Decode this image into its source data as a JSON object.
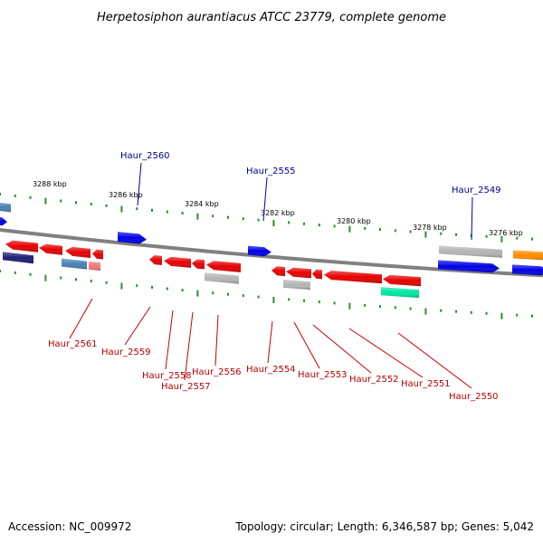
{
  "title": "Herpetosiphon aurantiacus ATCC 23779, complete genome",
  "footer": {
    "accession": "Accession: NC_009972",
    "summary": "Topology: circular; Length: 6,346,587 bp; Genes: 5,042"
  },
  "colors": {
    "backbone": "#808080",
    "tick": "#2e8b2e",
    "label_forward": "#00008b",
    "label_reverse": "#b40000",
    "leader_forward": "#0000a0",
    "leader_reverse": "#c80000",
    "gene_forward": "#0000e6",
    "gene_reverse": "#e60000",
    "gene_pseudo": "#b4b4b4",
    "gene_rna": "#00e6a0",
    "gene_pink": "#f07878",
    "gene_steel": "#4682b4",
    "gene_orange": "#ff8c00",
    "gene_navy": "#1e1e78"
  },
  "scale_labels": [
    "3288 kbp",
    "3286 kbp",
    "3284 kbp",
    "3282 kbp",
    "3280 kbp",
    "3278 kbp",
    "3276 kbp"
  ],
  "forward_labels": [
    "Haur_2560",
    "Haur_2555",
    "Haur_2549"
  ],
  "reverse_labels": [
    "Haur_2561",
    "Haur_2559",
    "Haur_2558",
    "Haur_2557",
    "Haur_2556",
    "Haur_2554",
    "Haur_2553",
    "Haur_2552",
    "Haur_2551",
    "Haur_2550"
  ]
}
